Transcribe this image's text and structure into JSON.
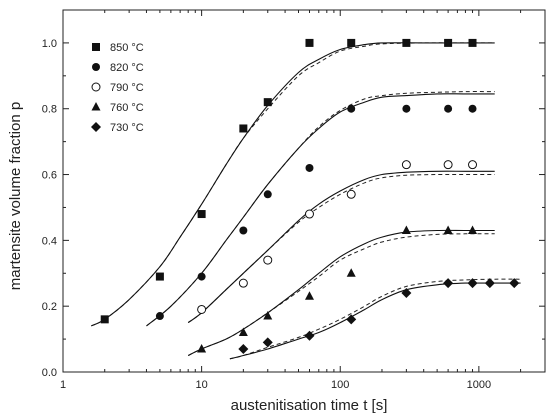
{
  "chart_data": {
    "type": "scatter",
    "title": "",
    "xlabel": "austenitisation time  t [s]",
    "ylabel": "martensite volume fraction  p",
    "x_scale": "log",
    "xlim": [
      1,
      3000
    ],
    "ylim": [
      0.0,
      1.1
    ],
    "x_ticks": [
      1,
      10,
      100,
      1000
    ],
    "x_tick_labels": [
      "1",
      "10",
      "100",
      "1000"
    ],
    "y_ticks": [
      0.0,
      0.2,
      0.4,
      0.6,
      0.8,
      1.0
    ],
    "y_tick_labels": [
      "0.0",
      "0.2",
      "0.4",
      "0.6",
      "0.8",
      "1.0"
    ],
    "grid": false,
    "legend_position": "top-left",
    "series": [
      {
        "name": "850 °C",
        "marker": "square",
        "points": [
          [
            2,
            0.16
          ],
          [
            5,
            0.29
          ],
          [
            10,
            0.48
          ],
          [
            20,
            0.74
          ],
          [
            30,
            0.82
          ],
          [
            60,
            1.0
          ],
          [
            120,
            1.0
          ],
          [
            300,
            1.0
          ],
          [
            600,
            1.0
          ],
          [
            900,
            1.0
          ]
        ],
        "fit_solid": [
          [
            1.6,
            0.14
          ],
          [
            2,
            0.16
          ],
          [
            3,
            0.22
          ],
          [
            5,
            0.32
          ],
          [
            7,
            0.41
          ],
          [
            10,
            0.51
          ],
          [
            15,
            0.63
          ],
          [
            20,
            0.71
          ],
          [
            30,
            0.81
          ],
          [
            50,
            0.91
          ],
          [
            70,
            0.95
          ],
          [
            100,
            0.98
          ],
          [
            150,
            0.995
          ],
          [
            200,
            1.0
          ],
          [
            400,
            1.0
          ],
          [
            800,
            1.0
          ],
          [
            1300,
            1.0
          ]
        ],
        "fit_dashed": [
          [
            1.6,
            0.14
          ],
          [
            2,
            0.16
          ],
          [
            3,
            0.22
          ],
          [
            5,
            0.32
          ],
          [
            7,
            0.41
          ],
          [
            10,
            0.51
          ],
          [
            15,
            0.63
          ],
          [
            20,
            0.71
          ],
          [
            30,
            0.8
          ],
          [
            50,
            0.9
          ],
          [
            70,
            0.94
          ],
          [
            100,
            0.975
          ],
          [
            150,
            0.99
          ],
          [
            200,
            0.997
          ],
          [
            400,
            1.0
          ],
          [
            800,
            1.0
          ],
          [
            1300,
            1.0
          ]
        ]
      },
      {
        "name": "820 °C",
        "marker": "circle",
        "points": [
          [
            5,
            0.17
          ],
          [
            10,
            0.29
          ],
          [
            20,
            0.43
          ],
          [
            30,
            0.54
          ],
          [
            60,
            0.62
          ],
          [
            120,
            0.8
          ],
          [
            300,
            0.8
          ],
          [
            600,
            0.8
          ],
          [
            900,
            0.8
          ]
        ],
        "fit_solid": [
          [
            4,
            0.14
          ],
          [
            6,
            0.2
          ],
          [
            10,
            0.3
          ],
          [
            15,
            0.4
          ],
          [
            20,
            0.47
          ],
          [
            30,
            0.57
          ],
          [
            50,
            0.68
          ],
          [
            70,
            0.74
          ],
          [
            100,
            0.79
          ],
          [
            150,
            0.82
          ],
          [
            200,
            0.835
          ],
          [
            300,
            0.84
          ],
          [
            500,
            0.845
          ],
          [
            800,
            0.845
          ],
          [
            1300,
            0.845
          ]
        ],
        "fit_dashed": [
          [
            4,
            0.14
          ],
          [
            6,
            0.2
          ],
          [
            10,
            0.3
          ],
          [
            15,
            0.4
          ],
          [
            20,
            0.47
          ],
          [
            30,
            0.57
          ],
          [
            50,
            0.68
          ],
          [
            70,
            0.745
          ],
          [
            100,
            0.795
          ],
          [
            150,
            0.83
          ],
          [
            200,
            0.84
          ],
          [
            300,
            0.847
          ],
          [
            500,
            0.85
          ],
          [
            800,
            0.852
          ],
          [
            1300,
            0.852
          ]
        ]
      },
      {
        "name": "790 °C",
        "marker": "open-circle",
        "points": [
          [
            10,
            0.19
          ],
          [
            20,
            0.27
          ],
          [
            30,
            0.34
          ],
          [
            60,
            0.48
          ],
          [
            120,
            0.54
          ],
          [
            300,
            0.63
          ],
          [
            600,
            0.63
          ],
          [
            900,
            0.63
          ]
        ],
        "fit_solid": [
          [
            8,
            0.15
          ],
          [
            10,
            0.18
          ],
          [
            15,
            0.25
          ],
          [
            20,
            0.3
          ],
          [
            30,
            0.37
          ],
          [
            50,
            0.46
          ],
          [
            70,
            0.51
          ],
          [
            100,
            0.55
          ],
          [
            150,
            0.585
          ],
          [
            200,
            0.6
          ],
          [
            300,
            0.607
          ],
          [
            500,
            0.61
          ],
          [
            800,
            0.61
          ],
          [
            1300,
            0.61
          ]
        ],
        "fit_dashed": [
          [
            8,
            0.15
          ],
          [
            10,
            0.18
          ],
          [
            15,
            0.25
          ],
          [
            20,
            0.3
          ],
          [
            30,
            0.37
          ],
          [
            50,
            0.455
          ],
          [
            70,
            0.5
          ],
          [
            100,
            0.54
          ],
          [
            150,
            0.575
          ],
          [
            200,
            0.59
          ],
          [
            300,
            0.598
          ],
          [
            500,
            0.6
          ],
          [
            800,
            0.6
          ],
          [
            1300,
            0.6
          ]
        ]
      },
      {
        "name": "760 °C",
        "marker": "triangle",
        "points": [
          [
            10,
            0.07
          ],
          [
            20,
            0.12
          ],
          [
            30,
            0.17
          ],
          [
            60,
            0.23
          ],
          [
            120,
            0.3
          ],
          [
            300,
            0.43
          ],
          [
            600,
            0.43
          ],
          [
            900,
            0.43
          ]
        ],
        "fit_solid": [
          [
            8,
            0.05
          ],
          [
            10,
            0.07
          ],
          [
            15,
            0.1
          ],
          [
            20,
            0.13
          ],
          [
            30,
            0.18
          ],
          [
            50,
            0.25
          ],
          [
            70,
            0.3
          ],
          [
            100,
            0.35
          ],
          [
            150,
            0.39
          ],
          [
            200,
            0.41
          ],
          [
            300,
            0.425
          ],
          [
            500,
            0.43
          ],
          [
            800,
            0.43
          ],
          [
            1300,
            0.43
          ]
        ],
        "fit_dashed": [
          [
            8,
            0.05
          ],
          [
            10,
            0.07
          ],
          [
            15,
            0.1
          ],
          [
            20,
            0.13
          ],
          [
            30,
            0.18
          ],
          [
            50,
            0.245
          ],
          [
            70,
            0.29
          ],
          [
            100,
            0.34
          ],
          [
            150,
            0.375
          ],
          [
            200,
            0.395
          ],
          [
            300,
            0.41
          ],
          [
            500,
            0.418
          ],
          [
            800,
            0.42
          ],
          [
            1300,
            0.42
          ]
        ]
      },
      {
        "name": "730 °C",
        "marker": "diamond",
        "points": [
          [
            20,
            0.07
          ],
          [
            30,
            0.09
          ],
          [
            60,
            0.11
          ],
          [
            120,
            0.16
          ],
          [
            300,
            0.24
          ],
          [
            600,
            0.27
          ],
          [
            900,
            0.27
          ],
          [
            1200,
            0.27
          ],
          [
            1800,
            0.27
          ]
        ],
        "fit_solid": [
          [
            16,
            0.04
          ],
          [
            20,
            0.05
          ],
          [
            30,
            0.07
          ],
          [
            50,
            0.1
          ],
          [
            70,
            0.12
          ],
          [
            100,
            0.15
          ],
          [
            150,
            0.19
          ],
          [
            200,
            0.22
          ],
          [
            300,
            0.25
          ],
          [
            500,
            0.265
          ],
          [
            800,
            0.27
          ],
          [
            1300,
            0.27
          ],
          [
            2000,
            0.27
          ]
        ],
        "fit_dashed": [
          [
            16,
            0.04
          ],
          [
            20,
            0.05
          ],
          [
            30,
            0.075
          ],
          [
            50,
            0.105
          ],
          [
            70,
            0.13
          ],
          [
            100,
            0.16
          ],
          [
            150,
            0.2
          ],
          [
            200,
            0.23
          ],
          [
            300,
            0.26
          ],
          [
            500,
            0.275
          ],
          [
            800,
            0.28
          ],
          [
            1300,
            0.282
          ],
          [
            2000,
            0.282
          ]
        ]
      }
    ]
  }
}
